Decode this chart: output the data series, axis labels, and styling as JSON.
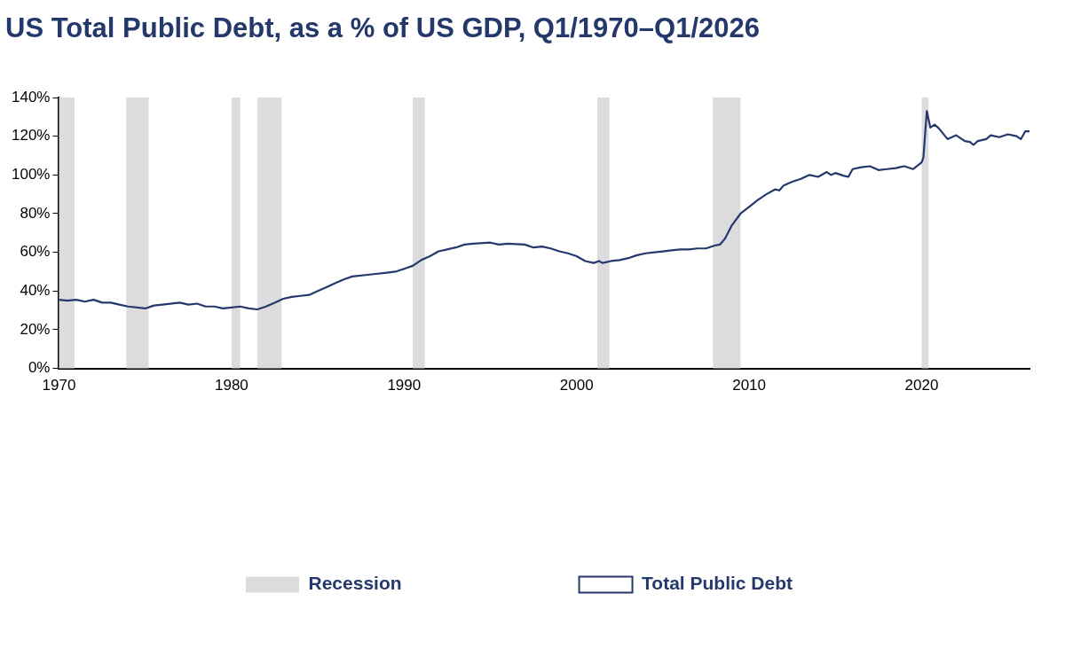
{
  "chart_data": {
    "type": "line",
    "title": "US Total Public Debt, as a % of US GDP, Q1/1970–Q1/2026",
    "x": [
      1970,
      1970.5,
      1971,
      1971.5,
      1972,
      1972.5,
      1973,
      1973.5,
      1974,
      1975,
      1975.5,
      1976,
      1977,
      1977.5,
      1978,
      1978.5,
      1979,
      1979.5,
      1980.5,
      1981,
      1981.5,
      1982,
      1982.5,
      1983,
      1983.5,
      1984,
      1984.5,
      1985,
      1985.5,
      1986,
      1986.5,
      1987,
      1988,
      1989,
      1989.5,
      1990,
      1990.5,
      1991,
      1991.5,
      1992,
      1992.5,
      1993,
      1993.5,
      1994,
      1995,
      1995.5,
      1996,
      1997,
      1997.5,
      1998,
      1998.5,
      1999,
      1999.5,
      2000,
      2000.5,
      2001,
      2001.3,
      2001.5,
      2002,
      2002.5,
      2003,
      2003.5,
      2004,
      2004.5,
      2005,
      2005.5,
      2006,
      2006.5,
      2007,
      2007.5,
      2008,
      2008.3,
      2008.6,
      2009,
      2009.5,
      2010,
      2010.5,
      2011,
      2011.5,
      2011.75,
      2012,
      2012.5,
      2013,
      2013.5,
      2014,
      2014.5,
      2014.75,
      2015,
      2015.5,
      2015.75,
      2016,
      2016.5,
      2017,
      2017.5,
      2018,
      2018.5,
      2019,
      2019.5,
      2020,
      2020.1,
      2020.3,
      2020.5,
      2020.75,
      2021,
      2021.5,
      2022,
      2022.5,
      2022.8,
      2023,
      2023.25,
      2023.75,
      2024,
      2024.5,
      2025,
      2025.5,
      2025.75,
      2026,
      2026.25
    ],
    "series": [
      {
        "name": "Total Public Debt",
        "color": "#24386b",
        "values": [
          35.5,
          35,
          35.5,
          34.5,
          35.5,
          34,
          34,
          33,
          32,
          31,
          32.5,
          33,
          34,
          33,
          33.5,
          32,
          32,
          31,
          32,
          31,
          30.5,
          32,
          34,
          36,
          37,
          37.5,
          38,
          40,
          42,
          44,
          46,
          47.5,
          48.5,
          49.5,
          50,
          51.5,
          53,
          56,
          58,
          60.5,
          61.5,
          62.5,
          64,
          64.5,
          65,
          64,
          64.5,
          64,
          62.5,
          63,
          62,
          60.5,
          59.5,
          58,
          55.5,
          54.5,
          55.5,
          54.5,
          55.5,
          56,
          57,
          58.5,
          59.5,
          60,
          60.5,
          61,
          61.5,
          61.5,
          62,
          62,
          63.5,
          64,
          67,
          74,
          80,
          83.5,
          87,
          90,
          92.5,
          92,
          94.5,
          96.5,
          98,
          100,
          99,
          101.5,
          100,
          101,
          99.5,
          99,
          103,
          104,
          104.5,
          102.5,
          103,
          103.5,
          104.5,
          103,
          106.5,
          109,
          133,
          124.5,
          126,
          124,
          118.5,
          120.5,
          117.5,
          117,
          115.5,
          117.5,
          118.5,
          120.5,
          119.5,
          121,
          120,
          118.5,
          122.5,
          122.5
        ]
      }
    ],
    "bands": [
      {
        "axis": "x",
        "from": 1970,
        "to": 1970.9,
        "label": "Recession",
        "color": "#dcdbde"
      },
      {
        "axis": "x",
        "from": 1973.9,
        "to": 1975.2,
        "color": "#dcdbde"
      },
      {
        "axis": "x",
        "from": 1980,
        "to": 1980.5,
        "color": "#dcdbde"
      },
      {
        "axis": "x",
        "from": 1981.5,
        "to": 1982.9,
        "color": "#dcdbde"
      },
      {
        "axis": "x",
        "from": 1990.5,
        "to": 1991.2,
        "color": "#dcdbde"
      },
      {
        "axis": "x",
        "from": 2001.2,
        "to": 2001.9,
        "color": "#dcdbde"
      },
      {
        "axis": "x",
        "from": 2007.9,
        "to": 2009.5,
        "color": "#dcdbde"
      },
      {
        "axis": "x",
        "from": 2020,
        "to": 2020.4,
        "color": "#dcdbde"
      }
    ],
    "xlim": [
      1970,
      2026.25
    ],
    "xticks": [
      1970,
      1980,
      1990,
      2000,
      2010,
      2020
    ],
    "ylim": [
      0,
      140
    ],
    "yticks": [
      {
        "value": 0,
        "label": "0%"
      },
      {
        "value": 20,
        "label": "20%"
      },
      {
        "value": 40,
        "label": "40%"
      },
      {
        "value": 60,
        "label": "60%"
      },
      {
        "value": 80,
        "label": "80%"
      },
      {
        "value": 100,
        "label": "100%"
      },
      {
        "value": 120,
        "label": "120%"
      },
      {
        "value": 140,
        "label": "140%"
      }
    ],
    "grid": false,
    "legend": "bottom",
    "marker": "none",
    "line_style": "solid"
  }
}
